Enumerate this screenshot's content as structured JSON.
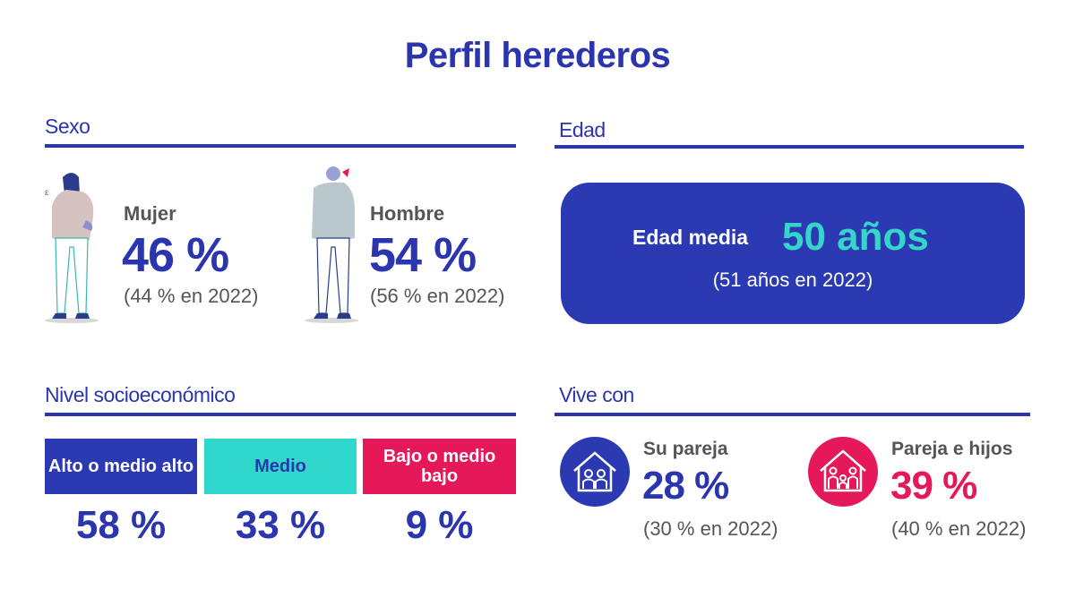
{
  "title": "Perfil herederos",
  "sections": {
    "sexo": "Sexo",
    "edad": "Edad",
    "nivel": "Nivel socioeconómico",
    "vive": "Vive con"
  },
  "sexo": {
    "mujer": {
      "label": "Mujer",
      "value": "46 %",
      "previous": "(44 % en 2022)"
    },
    "hombre": {
      "label": "Hombre",
      "value": "54 %",
      "previous": "(56 % en 2022)"
    }
  },
  "edad": {
    "label": "Edad media",
    "value": "50 años",
    "previous": "(51 años en 2022)"
  },
  "nivel": [
    {
      "label": "Alto o medio alto",
      "value": "58 %",
      "bg": "#2b3ab3",
      "fg": "#ffffff"
    },
    {
      "label": "Medio",
      "value": "33 %",
      "bg": "#2fd8cb",
      "fg": "#2b35ad"
    },
    {
      "label": "Bajo o medio bajo",
      "value": "9 %",
      "bg": "#e5195a",
      "fg": "#ffffff"
    }
  ],
  "vive": {
    "pareja": {
      "label": "Su pareja",
      "value": "28 %",
      "previous": "(30 % en 2022)",
      "icon": "couple-house-icon",
      "color": "#2b3ab3"
    },
    "hijos": {
      "label": "Pareja e hijos",
      "value": "39 %",
      "previous": "(40 % en 2022)",
      "icon": "family-house-icon",
      "color": "#e5195a"
    }
  },
  "colors": {
    "primary": "#2b35ad",
    "accent": "#35d6c9",
    "pink": "#e5195a",
    "gray": "#555555"
  }
}
